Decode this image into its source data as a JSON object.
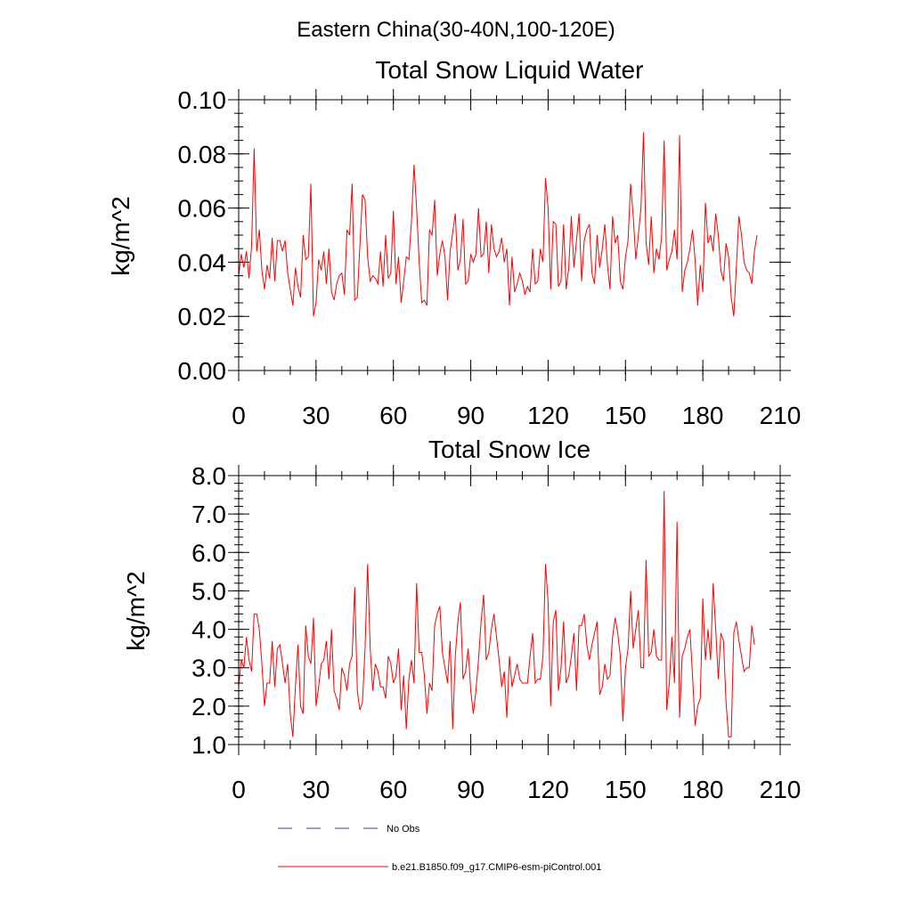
{
  "figure": {
    "suptitle": "Eastern China(30-40N,100-120E)"
  },
  "chart_data": [
    {
      "type": "line",
      "title": "Total Snow Liquid Water",
      "xlabel": "",
      "ylabel": "kg/m^2",
      "xlim": [
        0,
        210
      ],
      "ylim": [
        0.0,
        0.1
      ],
      "xticks": [
        0,
        30,
        60,
        90,
        120,
        150,
        180,
        210
      ],
      "xtick_labels": [
        "0",
        "30",
        "60",
        "90",
        "120",
        "150",
        "180",
        "210"
      ],
      "yticks": [
        0.0,
        0.02,
        0.04,
        0.06,
        0.08,
        0.1
      ],
      "ytick_labels": [
        "0.00",
        "0.02",
        "0.04",
        "0.06",
        "0.08",
        "0.10"
      ],
      "yminor_step": 0.005,
      "xminor_step": 10,
      "grid": false,
      "series": [
        {
          "name": "b.e21.B1850.f09_g17.CMIP6-esm-piControl.001",
          "color": "#ff0000",
          "x_start": 0,
          "x_step": 1,
          "values": [
            0.035,
            0.043,
            0.038,
            0.044,
            0.034,
            0.046,
            0.082,
            0.044,
            0.052,
            0.037,
            0.03,
            0.039,
            0.034,
            0.049,
            0.033,
            0.048,
            0.048,
            0.044,
            0.048,
            0.036,
            0.03,
            0.024,
            0.038,
            0.031,
            0.027,
            0.05,
            0.041,
            0.042,
            0.069,
            0.02,
            0.025,
            0.041,
            0.037,
            0.044,
            0.032,
            0.045,
            0.029,
            0.026,
            0.032,
            0.035,
            0.036,
            0.028,
            0.052,
            0.05,
            0.069,
            0.026,
            0.027,
            0.046,
            0.065,
            0.063,
            0.042,
            0.033,
            0.035,
            0.034,
            0.032,
            0.044,
            0.031,
            0.05,
            0.034,
            0.036,
            0.059,
            0.032,
            0.042,
            0.025,
            0.033,
            0.042,
            0.041,
            0.055,
            0.076,
            0.06,
            0.04,
            0.025,
            0.026,
            0.024,
            0.052,
            0.05,
            0.063,
            0.035,
            0.043,
            0.048,
            0.042,
            0.026,
            0.044,
            0.051,
            0.058,
            0.037,
            0.041,
            0.056,
            0.032,
            0.033,
            0.043,
            0.04,
            0.043,
            0.06,
            0.042,
            0.043,
            0.055,
            0.036,
            0.054,
            0.045,
            0.042,
            0.044,
            0.049,
            0.04,
            0.045,
            0.024,
            0.042,
            0.029,
            0.032,
            0.036,
            0.033,
            0.028,
            0.031,
            0.029,
            0.045,
            0.032,
            0.033,
            0.045,
            0.04,
            0.071,
            0.06,
            0.03,
            0.055,
            0.054,
            0.031,
            0.033,
            0.054,
            0.03,
            0.038,
            0.057,
            0.038,
            0.048,
            0.058,
            0.033,
            0.048,
            0.052,
            0.054,
            0.036,
            0.032,
            0.05,
            0.038,
            0.045,
            0.054,
            0.039,
            0.03,
            0.057,
            0.047,
            0.05,
            0.033,
            0.03,
            0.042,
            0.048,
            0.069,
            0.057,
            0.041,
            0.05,
            0.06,
            0.088,
            0.047,
            0.039,
            0.057,
            0.036,
            0.045,
            0.041,
            0.049,
            0.085,
            0.037,
            0.041,
            0.044,
            0.052,
            0.041,
            0.087,
            0.029,
            0.037,
            0.04,
            0.045,
            0.052,
            0.041,
            0.024,
            0.039,
            0.029,
            0.062,
            0.047,
            0.05,
            0.044,
            0.058,
            0.05,
            0.037,
            0.033,
            0.047,
            0.042,
            0.027,
            0.02,
            0.038,
            0.057,
            0.05,
            0.04,
            0.037,
            0.036,
            0.032,
            0.044,
            0.05
          ]
        }
      ]
    },
    {
      "type": "line",
      "title": "Total Snow Ice",
      "xlabel": "",
      "ylabel": "kg/m^2",
      "xlim": [
        0,
        210
      ],
      "ylim": [
        1.0,
        8.0
      ],
      "xticks": [
        0,
        30,
        60,
        90,
        120,
        150,
        180,
        210
      ],
      "xtick_labels": [
        "0",
        "30",
        "60",
        "90",
        "120",
        "150",
        "180",
        "210"
      ],
      "yticks": [
        1.0,
        2.0,
        3.0,
        4.0,
        5.0,
        6.0,
        7.0,
        8.0
      ],
      "ytick_labels": [
        "1.0",
        "2.0",
        "3.0",
        "4.0",
        "5.0",
        "6.0",
        "7.0",
        "8.0"
      ],
      "yminor_step": 0.2,
      "xminor_step": 10,
      "grid": false,
      "series": [
        {
          "name": "b.e21.B1850.f09_g17.CMIP6-esm-piControl.001",
          "color": "#ff0000",
          "x_start": 0,
          "x_step": 1,
          "values": [
            2.5,
            3.2,
            3.0,
            3.8,
            3.2,
            2.9,
            4.4,
            4.4,
            4.0,
            3.1,
            2.0,
            2.6,
            2.6,
            3.7,
            2.5,
            3.5,
            3.6,
            3.1,
            2.6,
            3.1,
            1.8,
            1.2,
            2.5,
            3.6,
            2.0,
            1.8,
            4.1,
            3.3,
            3.1,
            4.3,
            2.0,
            2.5,
            3.1,
            3.2,
            3.7,
            2.7,
            4.0,
            2.4,
            2.2,
            1.9,
            3.0,
            2.8,
            2.4,
            3.1,
            3.3,
            5.1,
            2.4,
            1.9,
            2.1,
            3.5,
            5.7,
            3.5,
            2.4,
            3.1,
            2.9,
            2.5,
            2.5,
            2.2,
            3.3,
            3.1,
            2.6,
            2.8,
            3.5,
            1.9,
            2.8,
            1.4,
            2.7,
            3.2,
            2.6,
            5.2,
            3.4,
            3.4,
            2.8,
            1.8,
            2.6,
            2.4,
            4.1,
            4.4,
            4.6,
            3.4,
            3.0,
            2.6,
            3.7,
            1.4,
            3.3,
            4.2,
            4.7,
            2.7,
            2.9,
            3.5,
            2.4,
            1.8,
            2.4,
            3.2,
            4.2,
            4.9,
            3.2,
            3.4,
            4.0,
            4.4,
            3.8,
            3.2,
            2.5,
            2.9,
            1.7,
            3.3,
            2.5,
            2.8,
            3.1,
            2.7,
            2.6,
            2.6,
            2.6,
            3.3,
            3.9,
            2.6,
            2.7,
            2.7,
            3.3,
            5.7,
            4.7,
            2.0,
            4.2,
            4.5,
            2.4,
            3.0,
            4.2,
            2.6,
            2.8,
            3.3,
            3.9,
            2.4,
            4.1,
            4.1,
            4.4,
            3.6,
            3.2,
            3.6,
            3.9,
            4.2,
            2.3,
            2.5,
            3.1,
            2.7,
            2.8,
            3.8,
            4.3,
            3.9,
            3.3,
            1.6,
            3.0,
            3.5,
            5.0,
            3.5,
            4.0,
            4.5,
            3.0,
            3.0,
            5.8,
            3.3,
            3.4,
            4.0,
            3.3,
            3.2,
            3.2,
            7.6,
            1.9,
            2.6,
            3.8,
            2.6,
            6.8,
            1.7,
            3.3,
            3.5,
            3.8,
            4.0,
            2.8,
            1.5,
            2.0,
            2.2,
            4.8,
            3.2,
            4.0,
            3.2,
            5.2,
            4.0,
            2.7,
            3.9,
            3.7,
            2.1,
            1.2,
            1.2,
            3.9,
            4.2,
            3.7,
            3.3,
            2.9,
            3.0,
            3.0,
            4.1,
            3.6
          ]
        }
      ]
    }
  ],
  "legend": {
    "placement": "bottom-left",
    "items": [
      {
        "label": "No Obs",
        "style": "dashed",
        "color": "#3344aa"
      },
      {
        "label": "b.e21.B1850.f09_g17.CMIP6-esm-piControl.001",
        "style": "solid",
        "color": "#ff0000"
      }
    ]
  }
}
